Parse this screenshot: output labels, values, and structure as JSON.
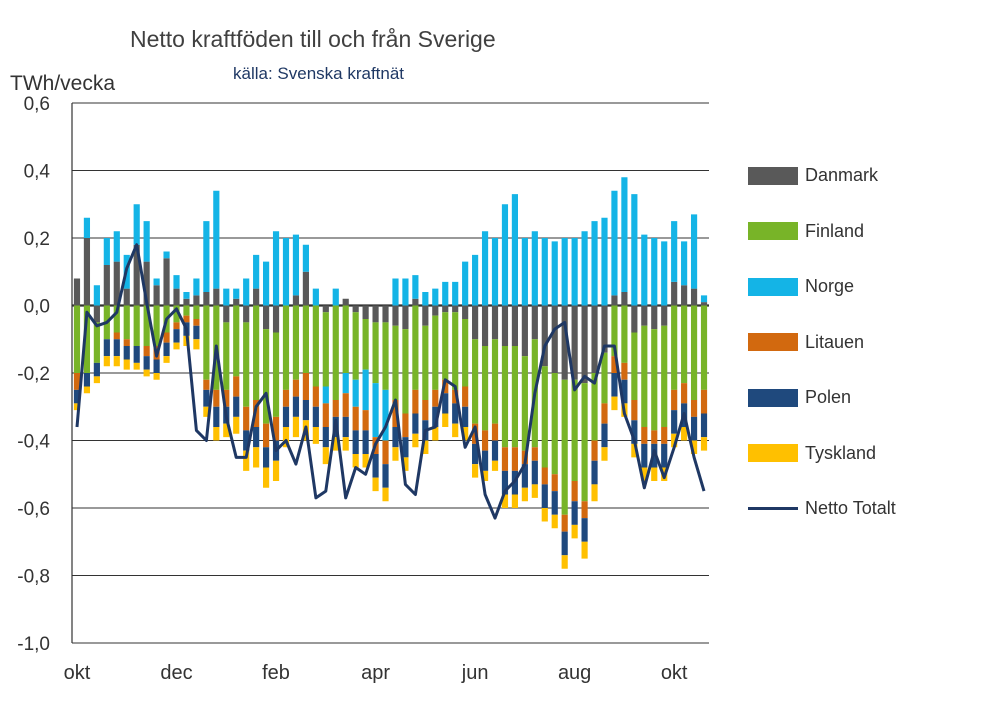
{
  "chart_data": {
    "type": "bar",
    "stacked": true,
    "title": "Netto kraftföden till och från Sverige",
    "subtitle": "källa: Svenska kraftnät",
    "ylabel": "TWh/vecka",
    "ylim": [
      -1.0,
      0.6
    ],
    "yticks": [
      "0,6",
      "0,4",
      "0,2",
      "0,0",
      "-0,2",
      "-0,4",
      "-0,6",
      "-0,8",
      "-1,0"
    ],
    "ytick_values": [
      0.6,
      0.4,
      0.2,
      0.0,
      -0.2,
      -0.4,
      -0.6,
      -0.8,
      -1.0
    ],
    "xticks": [
      "okt",
      "dec",
      "feb",
      "apr",
      "jun",
      "aug",
      "okt"
    ],
    "xtick_index": [
      0,
      10,
      20,
      30,
      40,
      50,
      60
    ],
    "n_weeks": 64,
    "series": [
      {
        "name": "Danmark",
        "color": "#595959",
        "values": [
          0.08,
          0.2,
          -0.05,
          0.12,
          0.13,
          0.05,
          0.18,
          0.13,
          0.06,
          0.14,
          0.05,
          0.02,
          0.03,
          0.04,
          0.05,
          -0.05,
          0.02,
          -0.05,
          0.05,
          -0.07,
          -0.08,
          0,
          0.03,
          0.1,
          0,
          -0.02,
          0,
          0.02,
          -0.02,
          -0.04,
          -0.05,
          -0.05,
          -0.06,
          -0.07,
          0.02,
          -0.06,
          -0.03,
          -0.02,
          -0.02,
          -0.04,
          -0.1,
          -0.12,
          -0.1,
          -0.12,
          -0.12,
          -0.15,
          -0.1,
          -0.18,
          -0.2,
          -0.22,
          -0.22,
          -0.23,
          -0.2,
          -0.14,
          0.03,
          0.04,
          -0.08,
          -0.06,
          -0.07,
          -0.06,
          0.07,
          0.06,
          0.05,
          0.01
        ]
      },
      {
        "name": "Finland",
        "color": "#78b428",
        "values": [
          -0.2,
          -0.2,
          -0.12,
          -0.1,
          -0.08,
          -0.1,
          -0.12,
          -0.12,
          -0.12,
          -0.08,
          -0.05,
          -0.03,
          -0.04,
          -0.22,
          -0.25,
          -0.2,
          -0.21,
          -0.25,
          -0.28,
          -0.28,
          -0.25,
          -0.25,
          -0.22,
          -0.2,
          -0.24,
          -0.22,
          -0.28,
          -0.2,
          -0.2,
          -0.15,
          -0.18,
          -0.2,
          -0.22,
          -0.25,
          -0.25,
          -0.22,
          -0.22,
          -0.2,
          -0.23,
          -0.2,
          -0.25,
          -0.25,
          -0.25,
          -0.3,
          -0.3,
          -0.28,
          -0.32,
          -0.3,
          -0.3,
          -0.4,
          -0.3,
          -0.35,
          -0.2,
          -0.15,
          -0.15,
          -0.17,
          -0.2,
          -0.3,
          -0.3,
          -0.3,
          -0.25,
          -0.23,
          -0.28,
          -0.25
        ]
      },
      {
        "name": "Norge",
        "color": "#14b4e6",
        "values": [
          0,
          0.06,
          0.06,
          0.08,
          0.09,
          0.1,
          0.12,
          0.12,
          0.02,
          0.02,
          0.04,
          0.02,
          0.05,
          0.21,
          0.29,
          0.05,
          0.03,
          0.08,
          0.1,
          0.13,
          0.22,
          0.2,
          0.18,
          0.08,
          0.05,
          -0.05,
          0.05,
          -0.06,
          -0.08,
          -0.12,
          -0.16,
          -0.15,
          0.08,
          0.08,
          0.07,
          0.04,
          0.05,
          0.07,
          0.07,
          0.13,
          0.15,
          0.22,
          0.2,
          0.3,
          0.33,
          0.2,
          0.22,
          0.2,
          0.19,
          0.2,
          0.2,
          0.22,
          0.25,
          0.26,
          0.31,
          0.34,
          0.33,
          0.21,
          0.2,
          0.19,
          0.18,
          0.13,
          0.22,
          0.02
        ]
      },
      {
        "name": "Litauen",
        "color": "#d2690f",
        "values": [
          -0.05,
          0,
          0,
          0,
          -0.02,
          -0.02,
          0,
          -0.03,
          -0.04,
          -0.03,
          -0.02,
          -0.02,
          -0.02,
          -0.03,
          -0.05,
          -0.05,
          -0.06,
          -0.07,
          -0.08,
          -0.07,
          -0.07,
          -0.05,
          -0.05,
          -0.08,
          -0.06,
          -0.07,
          -0.05,
          -0.07,
          -0.07,
          -0.06,
          -0.05,
          -0.07,
          -0.08,
          -0.07,
          -0.07,
          -0.06,
          -0.05,
          -0.04,
          -0.04,
          -0.06,
          -0.06,
          -0.06,
          -0.05,
          -0.07,
          -0.07,
          -0.04,
          -0.04,
          -0.05,
          -0.05,
          -0.05,
          -0.06,
          -0.05,
          -0.06,
          -0.06,
          -0.05,
          -0.05,
          -0.06,
          -0.05,
          -0.04,
          -0.05,
          -0.06,
          -0.06,
          -0.05,
          -0.07
        ]
      },
      {
        "name": "Polen",
        "color": "#1f497d",
        "values": [
          -0.04,
          -0.04,
          -0.04,
          -0.05,
          -0.05,
          -0.04,
          -0.05,
          -0.04,
          -0.04,
          -0.04,
          -0.04,
          -0.04,
          -0.04,
          -0.05,
          -0.06,
          -0.05,
          -0.06,
          -0.06,
          -0.06,
          -0.06,
          -0.06,
          -0.06,
          -0.06,
          -0.06,
          -0.06,
          -0.06,
          -0.06,
          -0.06,
          -0.07,
          -0.07,
          -0.07,
          -0.07,
          -0.06,
          -0.06,
          -0.06,
          -0.06,
          -0.06,
          -0.06,
          -0.06,
          -0.06,
          -0.06,
          -0.06,
          -0.06,
          -0.07,
          -0.07,
          -0.07,
          -0.07,
          -0.07,
          -0.07,
          -0.07,
          -0.07,
          -0.07,
          -0.07,
          -0.07,
          -0.07,
          -0.07,
          -0.07,
          -0.07,
          -0.07,
          -0.07,
          -0.07,
          -0.07,
          -0.07,
          -0.07
        ]
      },
      {
        "name": "Tyskland",
        "color": "#ffc000",
        "values": [
          -0.02,
          -0.02,
          -0.02,
          -0.03,
          -0.03,
          -0.03,
          -0.02,
          -0.02,
          -0.02,
          -0.02,
          -0.02,
          -0.03,
          -0.03,
          -0.03,
          -0.04,
          -0.04,
          -0.05,
          -0.06,
          -0.06,
          -0.06,
          -0.06,
          -0.06,
          -0.06,
          -0.06,
          -0.05,
          -0.05,
          -0.04,
          -0.04,
          -0.04,
          -0.04,
          -0.04,
          -0.04,
          -0.04,
          -0.04,
          -0.04,
          -0.04,
          -0.04,
          -0.04,
          -0.04,
          -0.04,
          -0.04,
          -0.03,
          -0.03,
          -0.04,
          -0.04,
          -0.04,
          -0.04,
          -0.04,
          -0.04,
          -0.04,
          -0.04,
          -0.05,
          -0.05,
          -0.04,
          -0.04,
          -0.04,
          -0.04,
          -0.04,
          -0.04,
          -0.04,
          -0.04,
          -0.04,
          -0.04,
          -0.04
        ]
      }
    ],
    "line": {
      "name": "Netto Totalt",
      "color": "#1f3864",
      "values": [
        -0.36,
        -0.02,
        -0.06,
        -0.05,
        -0.02,
        0.11,
        0.18,
        0.01,
        -0.15,
        -0.04,
        -0.01,
        -0.07,
        -0.37,
        -0.4,
        -0.12,
        -0.33,
        -0.45,
        -0.45,
        -0.3,
        -0.26,
        -0.43,
        -0.4,
        -0.47,
        -0.36,
        -0.57,
        -0.55,
        -0.34,
        -0.57,
        -0.48,
        -0.5,
        -0.41,
        -0.36,
        -0.28,
        -0.53,
        -0.56,
        -0.37,
        -0.36,
        -0.22,
        -0.24,
        -0.42,
        -0.36,
        -0.56,
        -0.63,
        -0.55,
        -0.52,
        -0.47,
        -0.26,
        -0.12,
        -0.07,
        -0.05,
        -0.25,
        -0.21,
        -0.23,
        -0.12,
        -0.12,
        -0.32,
        -0.4,
        -0.54,
        -0.43,
        -0.51,
        -0.42,
        -0.32,
        -0.45,
        -0.55
      ]
    }
  }
}
